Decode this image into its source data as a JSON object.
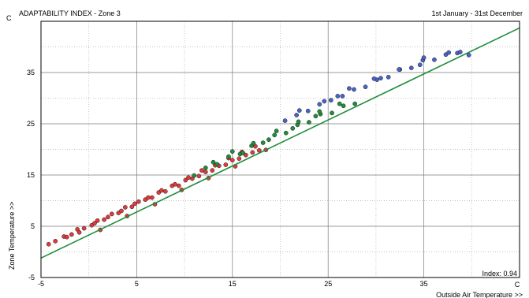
{
  "chart_data": {
    "type": "scatter",
    "title": "ADAPTABILITY INDEX - Zone 3",
    "period": "1st January - 31st December",
    "xlabel": "Outside Air Temperature >>",
    "ylabel": "Zone Temperature >>",
    "x_unit": "C",
    "y_unit": "C",
    "xlim": [
      -5,
      45
    ],
    "ylim": [
      -5,
      45
    ],
    "x_ticks": [
      -5,
      5,
      15,
      25,
      35
    ],
    "y_ticks": [
      -5,
      5,
      15,
      25,
      35
    ],
    "grid": true,
    "index_label": "Index: 0.94",
    "colors": {
      "cold": "#e03a3a",
      "mid": "#1f8f3a",
      "warm": "#4a63c8",
      "line": "#1f8f3a",
      "point_edge": "#1a1a1a"
    },
    "regression": {
      "x": [
        -5,
        45
      ],
      "y": [
        -1.2,
        43.7
      ]
    },
    "series": [
      {
        "color_key": "cold",
        "x": [
          -4.2,
          -3.5,
          -2.6,
          -1.8,
          -1.2,
          -0.5,
          0.3,
          0.9,
          1.6,
          2.4,
          3.1,
          3.8,
          4.5,
          5.2,
          5.9,
          6.6,
          7.3,
          8.0,
          8.7,
          9.4,
          10.1,
          10.8,
          11.5,
          12.2,
          12.9,
          13.6,
          14.3,
          15.0,
          15.7,
          16.4,
          17.1,
          17.8,
          18.5,
          -2.3,
          -1.0,
          0.6,
          2.0,
          3.4,
          4.8,
          6.2,
          7.6,
          9.0,
          10.4,
          11.8,
          13.2,
          14.6,
          16.0,
          17.4,
          1.2,
          4.0,
          6.9,
          9.7,
          12.5,
          15.3
        ],
        "y": [
          1.5,
          2.1,
          3.0,
          3.4,
          4.4,
          4.6,
          5.2,
          6.1,
          6.3,
          7.4,
          7.6,
          8.7,
          8.8,
          9.8,
          10.2,
          10.6,
          11.6,
          11.8,
          12.9,
          12.9,
          14.0,
          14.3,
          14.8,
          15.6,
          15.9,
          16.8,
          17.0,
          17.9,
          18.2,
          18.9,
          19.4,
          19.8,
          19.9,
          2.9,
          3.8,
          5.6,
          6.8,
          8.0,
          9.4,
          10.6,
          12.0,
          13.2,
          14.5,
          15.9,
          16.9,
          18.3,
          19.5,
          20.6,
          4.3,
          7.0,
          9.3,
          12.1,
          14.4,
          16.7
        ]
      },
      {
        "color_key": "mid",
        "x": [
          11.0,
          12.2,
          13.4,
          14.6,
          15.8,
          17.0,
          18.2,
          19.4,
          20.6,
          21.8,
          23.0,
          24.2,
          25.4,
          26.6,
          27.8,
          13.0,
          15.0,
          17.2,
          19.6,
          21.9,
          24.1,
          26.2,
          16.1,
          18.8,
          21.3,
          23.7
        ],
        "y": [
          14.9,
          16.4,
          17.1,
          18.6,
          19.1,
          20.7,
          21.3,
          22.8,
          23.2,
          24.8,
          25.3,
          26.9,
          27.1,
          28.5,
          28.9,
          17.5,
          19.6,
          21.2,
          23.6,
          25.4,
          27.4,
          28.9,
          19.3,
          21.9,
          24.1,
          26.5
        ]
      },
      {
        "color_key": "warm",
        "x": [
          20.5,
          21.7,
          22.9,
          24.1,
          25.3,
          26.5,
          27.7,
          28.9,
          30.1,
          31.3,
          32.5,
          33.7,
          34.9,
          36.1,
          37.3,
          38.5,
          39.7,
          22.0,
          24.6,
          27.2,
          29.8,
          32.4,
          35.0,
          37.6,
          26.0,
          30.5,
          34.6,
          38.8
        ],
        "y": [
          25.6,
          26.7,
          27.5,
          28.8,
          29.6,
          30.4,
          31.7,
          32.2,
          33.6,
          34.1,
          35.6,
          35.9,
          37.4,
          37.5,
          38.5,
          38.8,
          38.4,
          27.6,
          29.4,
          31.9,
          33.8,
          35.6,
          37.9,
          38.9,
          30.4,
          33.9,
          36.5,
          39.0
        ]
      }
    ]
  }
}
